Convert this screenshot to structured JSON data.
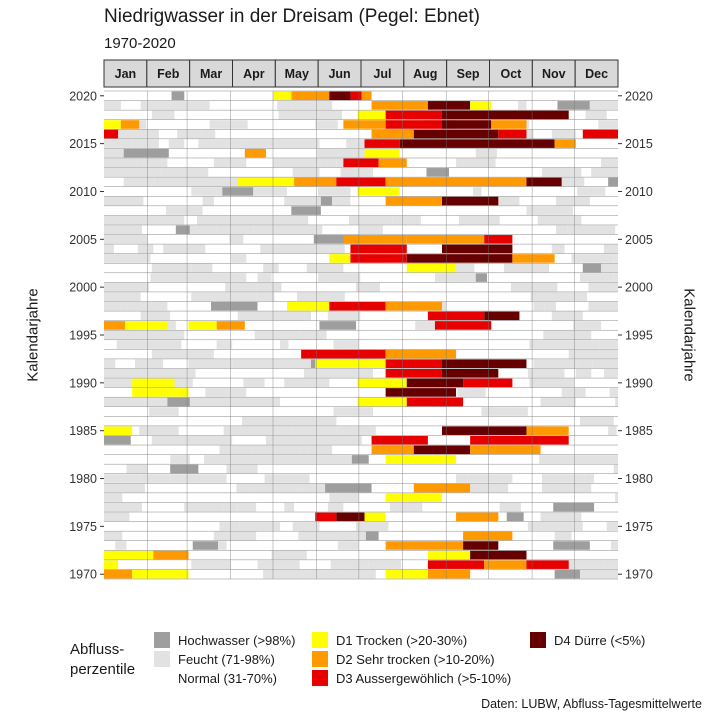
{
  "title": "Niedrigwasser in der Dreisam (Pegel: Ebnet)",
  "subtitle": "1970-2020",
  "source": "Daten: LUBW, Abfluss-Tagesmittelwerte",
  "legend": {
    "title_line1": "Abfluss-",
    "title_line2": "perzentile",
    "items": [
      {
        "label": "Hochwasser (>98%)",
        "color": "#9e9e9e"
      },
      {
        "label": "Feucht (71-98%)",
        "color": "#e2e2e2"
      },
      {
        "label": "Normal (31-70%)",
        "color": "#ffffff"
      },
      {
        "label": "D1 Trocken (>20-30%)",
        "color": "#ffff00"
      },
      {
        "label": "D2 Sehr trocken (>10-20%)",
        "color": "#ff9900"
      },
      {
        "label": "D3 Aussergewöhlich (>5-10%)",
        "color": "#e60000"
      },
      {
        "label": "D4 Dürre (<5%)",
        "color": "#660000"
      }
    ]
  },
  "chart_data": {
    "type": "heatmap",
    "xlabel": "",
    "ylabel": "Kalendarjahre",
    "months": [
      "Jan",
      "Feb",
      "Mar",
      "Apr",
      "May",
      "Jun",
      "Jul",
      "Aug",
      "Sep",
      "Oct",
      "Nov",
      "Dec"
    ],
    "ylim": [
      1970,
      2020
    ],
    "y_ticks": [
      1970,
      1975,
      1980,
      1985,
      1990,
      1995,
      2000,
      2005,
      2010,
      2015,
      2020
    ],
    "y_axes": "left and right",
    "strip_color": "#d9d9d9",
    "approx_segments_note_free": true,
    "segments": [
      {
        "year": 2020,
        "start": 48,
        "end": 57,
        "cls": "H"
      },
      {
        "year": 2020,
        "start": 133,
        "end": 160,
        "cls": "D2"
      },
      {
        "year": 2020,
        "start": 160,
        "end": 175,
        "cls": "D4"
      },
      {
        "year": 2020,
        "start": 175,
        "end": 183,
        "cls": "D3"
      },
      {
        "year": 2020,
        "start": 120,
        "end": 133,
        "cls": "D1"
      },
      {
        "year": 2020,
        "start": 183,
        "end": 190,
        "cls": "D2"
      },
      {
        "year": 2019,
        "start": 190,
        "end": 230,
        "cls": "D2"
      },
      {
        "year": 2019,
        "start": 230,
        "end": 260,
        "cls": "D4"
      },
      {
        "year": 2019,
        "start": 260,
        "end": 275,
        "cls": "D1"
      },
      {
        "year": 2018,
        "start": 180,
        "end": 200,
        "cls": "D1"
      },
      {
        "year": 2018,
        "start": 200,
        "end": 240,
        "cls": "D3"
      },
      {
        "year": 2018,
        "start": 240,
        "end": 330,
        "cls": "D4"
      },
      {
        "year": 2017,
        "start": 0,
        "end": 12,
        "cls": "D1"
      },
      {
        "year": 2017,
        "start": 12,
        "end": 25,
        "cls": "D2"
      },
      {
        "year": 2017,
        "start": 170,
        "end": 200,
        "cls": "D2"
      },
      {
        "year": 2017,
        "start": 200,
        "end": 240,
        "cls": "D3"
      },
      {
        "year": 2017,
        "start": 240,
        "end": 275,
        "cls": "D4"
      },
      {
        "year": 2017,
        "start": 275,
        "end": 300,
        "cls": "D2"
      },
      {
        "year": 2016,
        "start": 0,
        "end": 10,
        "cls": "D3"
      },
      {
        "year": 2016,
        "start": 190,
        "end": 220,
        "cls": "D2"
      },
      {
        "year": 2016,
        "start": 220,
        "end": 280,
        "cls": "D4"
      },
      {
        "year": 2016,
        "start": 280,
        "end": 300,
        "cls": "D3"
      },
      {
        "year": 2016,
        "start": 340,
        "end": 365,
        "cls": "D3"
      },
      {
        "year": 2015,
        "start": 185,
        "end": 210,
        "cls": "D3"
      },
      {
        "year": 2015,
        "start": 210,
        "end": 320,
        "cls": "D4"
      },
      {
        "year": 2015,
        "start": 320,
        "end": 335,
        "cls": "D2"
      },
      {
        "year": 2014,
        "start": 100,
        "end": 115,
        "cls": "D2"
      },
      {
        "year": 2014,
        "start": 185,
        "end": 210,
        "cls": "D1"
      },
      {
        "year": 2013,
        "start": 170,
        "end": 195,
        "cls": "D3"
      },
      {
        "year": 2013,
        "start": 195,
        "end": 215,
        "cls": "D2"
      },
      {
        "year": 2011,
        "start": 95,
        "end": 135,
        "cls": "D1"
      },
      {
        "year": 2011,
        "start": 135,
        "end": 165,
        "cls": "D2"
      },
      {
        "year": 2011,
        "start": 165,
        "end": 200,
        "cls": "D3"
      },
      {
        "year": 2011,
        "start": 200,
        "end": 240,
        "cls": "D2"
      },
      {
        "year": 2011,
        "start": 240,
        "end": 300,
        "cls": "D2"
      },
      {
        "year": 2011,
        "start": 300,
        "end": 325,
        "cls": "D4"
      },
      {
        "year": 2010,
        "start": 180,
        "end": 210,
        "cls": "D1"
      },
      {
        "year": 2009,
        "start": 240,
        "end": 280,
        "cls": "D4"
      },
      {
        "year": 2009,
        "start": 200,
        "end": 240,
        "cls": "D2"
      },
      {
        "year": 2005,
        "start": 170,
        "end": 215,
        "cls": "D2"
      },
      {
        "year": 2005,
        "start": 215,
        "end": 270,
        "cls": "D2"
      },
      {
        "year": 2005,
        "start": 270,
        "end": 290,
        "cls": "D3"
      },
      {
        "year": 2004,
        "start": 175,
        "end": 215,
        "cls": "D3"
      },
      {
        "year": 2004,
        "start": 240,
        "end": 290,
        "cls": "D4"
      },
      {
        "year": 2003,
        "start": 160,
        "end": 175,
        "cls": "D1"
      },
      {
        "year": 2003,
        "start": 175,
        "end": 215,
        "cls": "D3"
      },
      {
        "year": 2003,
        "start": 215,
        "end": 290,
        "cls": "D4"
      },
      {
        "year": 2003,
        "start": 290,
        "end": 320,
        "cls": "D2"
      },
      {
        "year": 2002,
        "start": 215,
        "end": 250,
        "cls": "D1"
      },
      {
        "year": 1998,
        "start": 130,
        "end": 160,
        "cls": "D1"
      },
      {
        "year": 1998,
        "start": 160,
        "end": 200,
        "cls": "D3"
      },
      {
        "year": 1998,
        "start": 200,
        "end": 240,
        "cls": "D2"
      },
      {
        "year": 1997,
        "start": 230,
        "end": 270,
        "cls": "D3"
      },
      {
        "year": 1997,
        "start": 270,
        "end": 295,
        "cls": "D4"
      },
      {
        "year": 1996,
        "start": 0,
        "end": 15,
        "cls": "D2"
      },
      {
        "year": 1996,
        "start": 15,
        "end": 45,
        "cls": "D1"
      },
      {
        "year": 1996,
        "start": 60,
        "end": 80,
        "cls": "D1"
      },
      {
        "year": 1996,
        "start": 80,
        "end": 100,
        "cls": "D2"
      },
      {
        "year": 1996,
        "start": 235,
        "end": 275,
        "cls": "D3"
      },
      {
        "year": 1993,
        "start": 140,
        "end": 200,
        "cls": "D3"
      },
      {
        "year": 1993,
        "start": 200,
        "end": 250,
        "cls": "D2"
      },
      {
        "year": 1992,
        "start": 150,
        "end": 200,
        "cls": "D1"
      },
      {
        "year": 1992,
        "start": 200,
        "end": 240,
        "cls": "D3"
      },
      {
        "year": 1992,
        "start": 240,
        "end": 300,
        "cls": "D4"
      },
      {
        "year": 1991,
        "start": 200,
        "end": 240,
        "cls": "D3"
      },
      {
        "year": 1991,
        "start": 240,
        "end": 280,
        "cls": "D4"
      },
      {
        "year": 1990,
        "start": 20,
        "end": 50,
        "cls": "D1"
      },
      {
        "year": 1990,
        "start": 180,
        "end": 215,
        "cls": "D1"
      },
      {
        "year": 1990,
        "start": 215,
        "end": 255,
        "cls": "D4"
      },
      {
        "year": 1990,
        "start": 255,
        "end": 290,
        "cls": "D3"
      },
      {
        "year": 1989,
        "start": 20,
        "end": 60,
        "cls": "D1"
      },
      {
        "year": 1989,
        "start": 200,
        "end": 250,
        "cls": "D4"
      },
      {
        "year": 1988,
        "start": 180,
        "end": 215,
        "cls": "D1"
      },
      {
        "year": 1988,
        "start": 215,
        "end": 255,
        "cls": "D3"
      },
      {
        "year": 1985,
        "start": 0,
        "end": 20,
        "cls": "D1"
      },
      {
        "year": 1985,
        "start": 240,
        "end": 300,
        "cls": "D4"
      },
      {
        "year": 1985,
        "start": 300,
        "end": 330,
        "cls": "D2"
      },
      {
        "year": 1984,
        "start": 190,
        "end": 230,
        "cls": "D3"
      },
      {
        "year": 1984,
        "start": 260,
        "end": 330,
        "cls": "D3"
      },
      {
        "year": 1983,
        "start": 190,
        "end": 220,
        "cls": "D2"
      },
      {
        "year": 1983,
        "start": 220,
        "end": 260,
        "cls": "D4"
      },
      {
        "year": 1983,
        "start": 260,
        "end": 310,
        "cls": "D2"
      },
      {
        "year": 1982,
        "start": 200,
        "end": 250,
        "cls": "D1"
      },
      {
        "year": 1979,
        "start": 220,
        "end": 260,
        "cls": "D2"
      },
      {
        "year": 1978,
        "start": 200,
        "end": 240,
        "cls": "D1"
      },
      {
        "year": 1976,
        "start": 150,
        "end": 165,
        "cls": "D3"
      },
      {
        "year": 1976,
        "start": 165,
        "end": 185,
        "cls": "D4"
      },
      {
        "year": 1976,
        "start": 185,
        "end": 200,
        "cls": "D1"
      },
      {
        "year": 1976,
        "start": 250,
        "end": 280,
        "cls": "D2"
      },
      {
        "year": 1974,
        "start": 255,
        "end": 290,
        "cls": "D2"
      },
      {
        "year": 1973,
        "start": 200,
        "end": 255,
        "cls": "D2"
      },
      {
        "year": 1973,
        "start": 255,
        "end": 280,
        "cls": "D4"
      },
      {
        "year": 1972,
        "start": 0,
        "end": 35,
        "cls": "D1"
      },
      {
        "year": 1972,
        "start": 35,
        "end": 60,
        "cls": "D2"
      },
      {
        "year": 1972,
        "start": 230,
        "end": 260,
        "cls": "D1"
      },
      {
        "year": 1972,
        "start": 260,
        "end": 300,
        "cls": "D4"
      },
      {
        "year": 1971,
        "start": 0,
        "end": 10,
        "cls": "D1"
      },
      {
        "year": 1971,
        "start": 230,
        "end": 270,
        "cls": "D3"
      },
      {
        "year": 1971,
        "start": 270,
        "end": 300,
        "cls": "D2"
      },
      {
        "year": 1971,
        "start": 300,
        "end": 330,
        "cls": "D3"
      },
      {
        "year": 1970,
        "start": 0,
        "end": 20,
        "cls": "D2"
      },
      {
        "year": 1970,
        "start": 20,
        "end": 60,
        "cls": "D1"
      },
      {
        "year": 1970,
        "start": 200,
        "end": 230,
        "cls": "D1"
      },
      {
        "year": 1970,
        "start": 230,
        "end": 260,
        "cls": "D2"
      }
    ]
  }
}
